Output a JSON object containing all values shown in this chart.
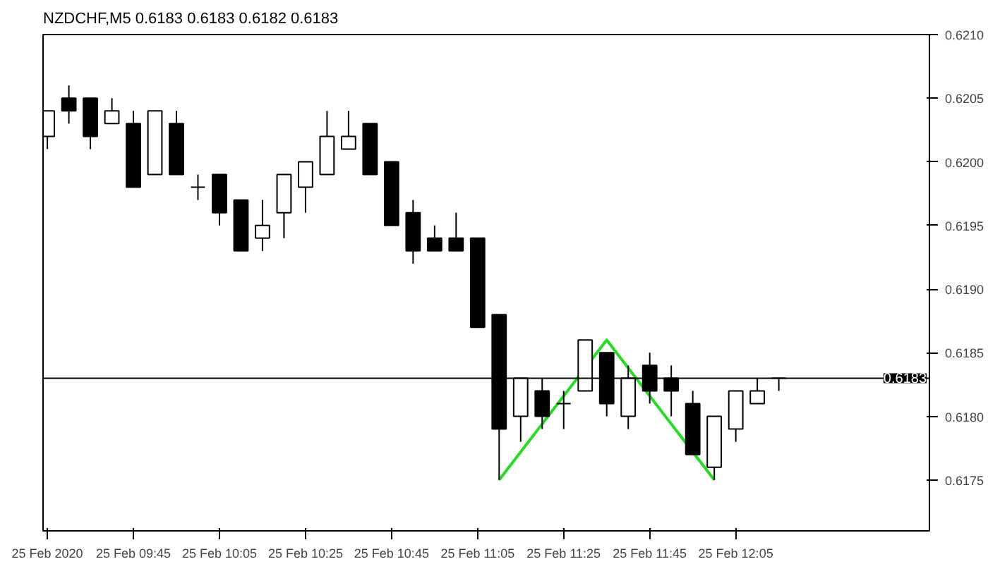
{
  "chart_data": {
    "type": "candlestick",
    "title": "NZDCHF,M5  0.6183 0.6183 0.6182 0.6183",
    "x": [
      "2020-02-25T09:25",
      "2020-02-25T09:30",
      "2020-02-25T09:35",
      "2020-02-25T09:40",
      "2020-02-25T09:45",
      "2020-02-25T09:50",
      "2020-02-25T09:55",
      "2020-02-25T10:00",
      "2020-02-25T10:05",
      "2020-02-25T10:10",
      "2020-02-25T10:15",
      "2020-02-25T10:20",
      "2020-02-25T10:25",
      "2020-02-25T10:30",
      "2020-02-25T10:35",
      "2020-02-25T10:40",
      "2020-02-25T10:45",
      "2020-02-25T10:50",
      "2020-02-25T10:55",
      "2020-02-25T11:00",
      "2020-02-25T11:05",
      "2020-02-25T11:10",
      "2020-02-25T11:15",
      "2020-02-25T11:20",
      "2020-02-25T11:25",
      "2020-02-25T11:30",
      "2020-02-25T11:35",
      "2020-02-25T11:40",
      "2020-02-25T11:45",
      "2020-02-25T11:50",
      "2020-02-25T11:55",
      "2020-02-25T12:00",
      "2020-02-25T12:05",
      "2020-02-25T12:10",
      "2020-02-25T12:15"
    ],
    "ohlc": [
      [
        0.6202,
        0.6204,
        0.6201,
        0.6204
      ],
      [
        0.6205,
        0.6206,
        0.6203,
        0.6204
      ],
      [
        0.6205,
        0.6205,
        0.6201,
        0.6202
      ],
      [
        0.6203,
        0.6205,
        0.6203,
        0.6204
      ],
      [
        0.6203,
        0.6204,
        0.6198,
        0.6198
      ],
      [
        0.6199,
        0.6204,
        0.6199,
        0.6204
      ],
      [
        0.6203,
        0.6204,
        0.6199,
        0.6199
      ],
      [
        0.6198,
        0.6199,
        0.6197,
        0.6198
      ],
      [
        0.6199,
        0.6199,
        0.6195,
        0.6196
      ],
      [
        0.6197,
        0.6197,
        0.6193,
        0.6193
      ],
      [
        0.6194,
        0.6197,
        0.6193,
        0.6195
      ],
      [
        0.6196,
        0.6199,
        0.6194,
        0.6199
      ],
      [
        0.6198,
        0.62,
        0.6196,
        0.62
      ],
      [
        0.6199,
        0.6204,
        0.6199,
        0.6202
      ],
      [
        0.6201,
        0.6204,
        0.6201,
        0.6202
      ],
      [
        0.6203,
        0.6203,
        0.6199,
        0.6199
      ],
      [
        0.62,
        0.62,
        0.6195,
        0.6195
      ],
      [
        0.6196,
        0.6197,
        0.6192,
        0.6193
      ],
      [
        0.6194,
        0.6195,
        0.6193,
        0.6193
      ],
      [
        0.6194,
        0.6196,
        0.6193,
        0.6193
      ],
      [
        0.6194,
        0.6194,
        0.6187,
        0.6187
      ],
      [
        0.6188,
        0.6188,
        0.6175,
        0.6179
      ],
      [
        0.618,
        0.6183,
        0.6178,
        0.6183
      ],
      [
        0.6182,
        0.6183,
        0.6179,
        0.618
      ],
      [
        0.6181,
        0.6182,
        0.6179,
        0.6181
      ],
      [
        0.6182,
        0.6186,
        0.6182,
        0.6186
      ],
      [
        0.6185,
        0.6185,
        0.618,
        0.6181
      ],
      [
        0.618,
        0.6184,
        0.6179,
        0.6183
      ],
      [
        0.6184,
        0.6185,
        0.6181,
        0.6182
      ],
      [
        0.6183,
        0.6184,
        0.618,
        0.6182
      ],
      [
        0.6181,
        0.6182,
        0.6177,
        0.6177
      ],
      [
        0.6176,
        0.618,
        0.6175,
        0.618
      ],
      [
        0.6179,
        0.6182,
        0.6178,
        0.6182
      ],
      [
        0.6181,
        0.6183,
        0.6181,
        0.6182
      ],
      [
        0.6183,
        0.6183,
        0.6182,
        0.6183
      ]
    ],
    "series": [
      {
        "type": "line",
        "color": "#22dd22",
        "x": [
          "2020-02-25T11:10",
          "2020-02-25T11:35",
          "2020-02-25T12:00"
        ],
        "values": [
          0.6175,
          0.6186,
          0.6175
        ]
      }
    ],
    "ref_lines": [
      {
        "axis": "y",
        "value": 0.6183,
        "label": "0.6183",
        "color": "#000000"
      }
    ],
    "xlim": [
      "2020-02-25T09:24",
      "2020-02-25T12:50"
    ],
    "xticks": [
      {
        "value": "2020-02-25T09:25",
        "label": "25 Feb 2020"
      },
      {
        "value": "2020-02-25T09:45",
        "label": "25 Feb 09:45"
      },
      {
        "value": "2020-02-25T10:05",
        "label": "25 Feb 10:05"
      },
      {
        "value": "2020-02-25T10:25",
        "label": "25 Feb 10:25"
      },
      {
        "value": "2020-02-25T10:45",
        "label": "25 Feb 10:45"
      },
      {
        "value": "2020-02-25T11:05",
        "label": "25 Feb 11:05"
      },
      {
        "value": "2020-02-25T11:25",
        "label": "25 Feb 11:25"
      },
      {
        "value": "2020-02-25T11:45",
        "label": "25 Feb 11:45"
      },
      {
        "value": "2020-02-25T12:05",
        "label": "25 Feb 12:05"
      }
    ],
    "ylim": [
      0.6171,
      0.621
    ],
    "yticks": [
      {
        "value": 0.6175,
        "label": "0.6175"
      },
      {
        "value": 0.618,
        "label": "0.6180"
      },
      {
        "value": 0.6185,
        "label": "0.6185"
      },
      {
        "value": 0.619,
        "label": "0.6190"
      },
      {
        "value": 0.6195,
        "label": "0.6195"
      },
      {
        "value": 0.62,
        "label": "0.6200"
      },
      {
        "value": 0.6205,
        "label": "0.6205"
      },
      {
        "value": 0.621,
        "label": "0.6210"
      }
    ],
    "grid": false
  }
}
